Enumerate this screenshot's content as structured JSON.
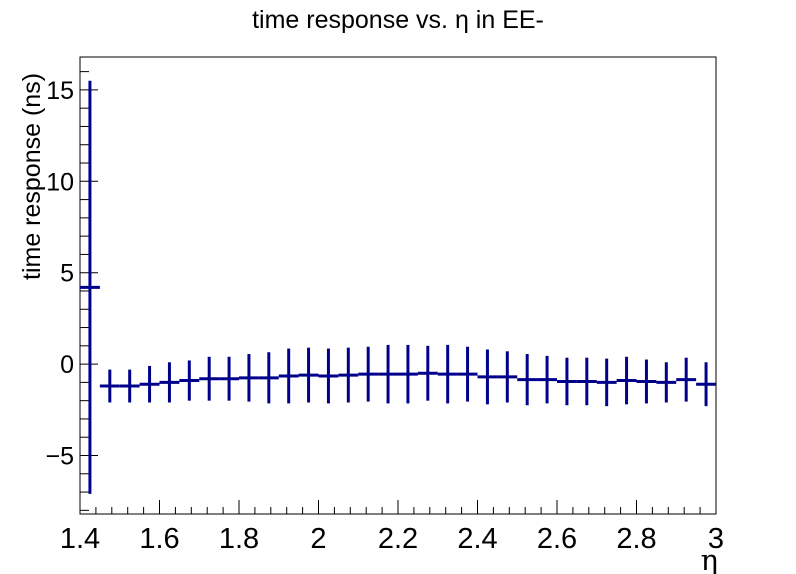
{
  "chart_data": {
    "type": "scatter",
    "title": "time response vs. η in EE-",
    "xlabel": "η",
    "ylabel": "time response (ns)",
    "xlim": [
      1.4,
      3.0
    ],
    "ylim": [
      -8.2,
      16.8
    ],
    "x_ticks": [
      "1.4",
      "1.6",
      "1.8",
      "2",
      "2.2",
      "2.4",
      "2.6",
      "2.8",
      "3"
    ],
    "x_tick_values": [
      1.4,
      1.6,
      1.8,
      2.0,
      2.2,
      2.4,
      2.6,
      2.8,
      3.0
    ],
    "y_ticks": [
      "−5",
      "0",
      "5",
      "10",
      "15"
    ],
    "y_tick_values": [
      -5,
      0,
      5,
      10,
      15
    ],
    "grid": false,
    "series": [
      {
        "color": "#00008b",
        "points": [
          {
            "x": 1.425,
            "xerr": 0.025,
            "y": 4.2,
            "err": 11.3
          },
          {
            "x": 1.475,
            "xerr": 0.025,
            "y": -1.2,
            "err": 0.9
          },
          {
            "x": 1.525,
            "xerr": 0.025,
            "y": -1.2,
            "err": 0.9
          },
          {
            "x": 1.575,
            "xerr": 0.025,
            "y": -1.1,
            "err": 1.0
          },
          {
            "x": 1.625,
            "xerr": 0.025,
            "y": -1.0,
            "err": 1.1
          },
          {
            "x": 1.675,
            "xerr": 0.025,
            "y": -0.9,
            "err": 1.1
          },
          {
            "x": 1.725,
            "xerr": 0.025,
            "y": -0.8,
            "err": 1.2
          },
          {
            "x": 1.775,
            "xerr": 0.025,
            "y": -0.8,
            "err": 1.2
          },
          {
            "x": 1.825,
            "xerr": 0.025,
            "y": -0.75,
            "err": 1.3
          },
          {
            "x": 1.875,
            "xerr": 0.025,
            "y": -0.75,
            "err": 1.4
          },
          {
            "x": 1.925,
            "xerr": 0.025,
            "y": -0.65,
            "err": 1.5
          },
          {
            "x": 1.975,
            "xerr": 0.025,
            "y": -0.6,
            "err": 1.5
          },
          {
            "x": 2.025,
            "xerr": 0.025,
            "y": -0.65,
            "err": 1.5
          },
          {
            "x": 2.075,
            "xerr": 0.025,
            "y": -0.6,
            "err": 1.5
          },
          {
            "x": 2.125,
            "xerr": 0.025,
            "y": -0.55,
            "err": 1.5
          },
          {
            "x": 2.175,
            "xerr": 0.025,
            "y": -0.55,
            "err": 1.6
          },
          {
            "x": 2.225,
            "xerr": 0.025,
            "y": -0.55,
            "err": 1.6
          },
          {
            "x": 2.275,
            "xerr": 0.025,
            "y": -0.5,
            "err": 1.5
          },
          {
            "x": 2.325,
            "xerr": 0.025,
            "y": -0.55,
            "err": 1.6
          },
          {
            "x": 2.375,
            "xerr": 0.025,
            "y": -0.55,
            "err": 1.5
          },
          {
            "x": 2.425,
            "xerr": 0.025,
            "y": -0.7,
            "err": 1.5
          },
          {
            "x": 2.475,
            "xerr": 0.025,
            "y": -0.7,
            "err": 1.4
          },
          {
            "x": 2.525,
            "xerr": 0.025,
            "y": -0.85,
            "err": 1.4
          },
          {
            "x": 2.575,
            "xerr": 0.025,
            "y": -0.85,
            "err": 1.3
          },
          {
            "x": 2.625,
            "xerr": 0.025,
            "y": -0.95,
            "err": 1.3
          },
          {
            "x": 2.675,
            "xerr": 0.025,
            "y": -0.95,
            "err": 1.3
          },
          {
            "x": 2.725,
            "xerr": 0.025,
            "y": -1.0,
            "err": 1.3
          },
          {
            "x": 2.775,
            "xerr": 0.025,
            "y": -0.9,
            "err": 1.3
          },
          {
            "x": 2.825,
            "xerr": 0.025,
            "y": -0.95,
            "err": 1.2
          },
          {
            "x": 2.875,
            "xerr": 0.025,
            "y": -1.0,
            "err": 1.1
          },
          {
            "x": 2.925,
            "xerr": 0.025,
            "y": -0.85,
            "err": 1.2
          },
          {
            "x": 2.975,
            "xerr": 0.025,
            "y": -1.1,
            "err": 1.2
          }
        ]
      }
    ]
  }
}
